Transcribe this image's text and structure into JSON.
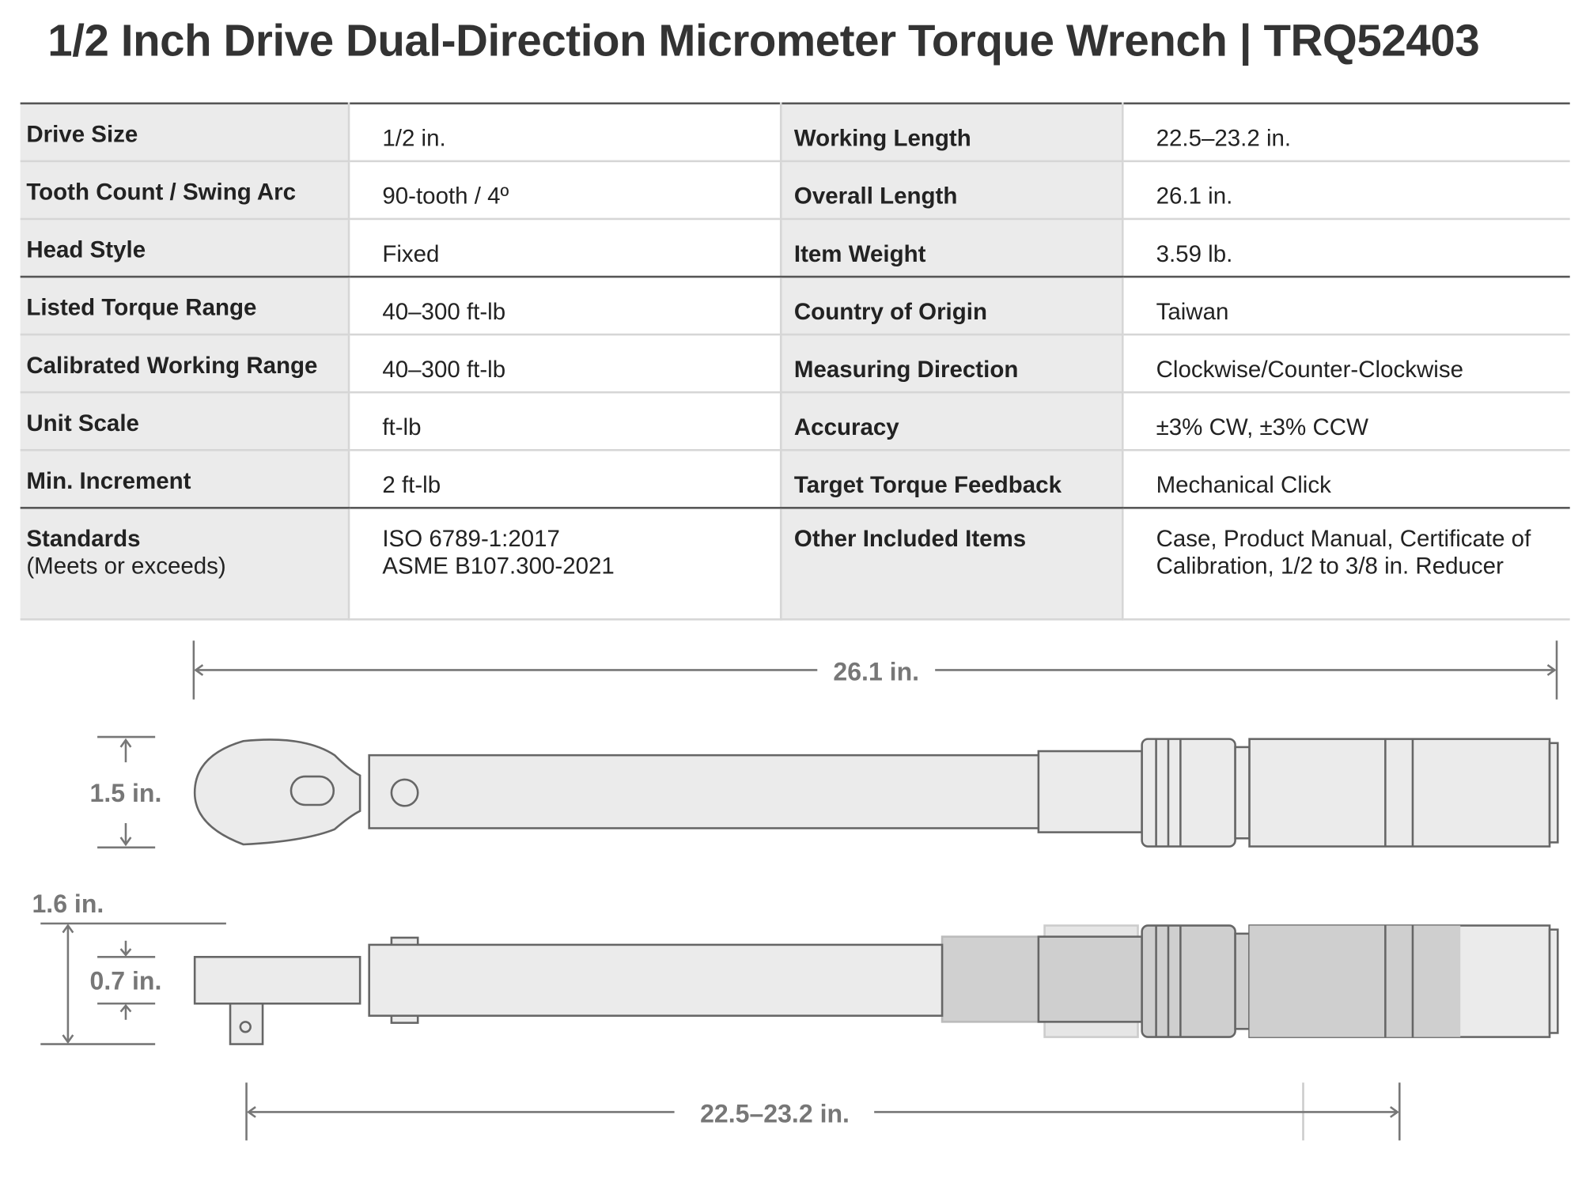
{
  "title": "1/2 Inch Drive Dual-Direction Micrometer Torque Wrench | TRQ52403",
  "specs": [
    {
      "label": "Drive Size",
      "value": "1/2 in.",
      "label2": "Working Length",
      "value2": "22.5–23.2 in."
    },
    {
      "label": "Tooth Count / Swing Arc",
      "value": "90-tooth / 4º",
      "label2": "Overall Length",
      "value2": "26.1 in."
    },
    {
      "label": "Head Style",
      "value": "Fixed",
      "label2": "Item Weight",
      "value2": "3.59 lb."
    },
    {
      "label": "Listed Torque Range",
      "value": "40–300 ft-lb",
      "label2": "Country of Origin",
      "value2": "Taiwan"
    },
    {
      "label": "Calibrated Working Range",
      "value": "40–300 ft-lb",
      "label2": "Measuring Direction",
      "value2": "Clockwise/Counter-Clockwise"
    },
    {
      "label": "Unit Scale",
      "value": "ft-lb",
      "label2": "Accuracy",
      "value2": "±3% CW,  ±3% CCW"
    },
    {
      "label": "Min. Increment",
      "value": "2 ft-lb",
      "label2": "Target Torque Feedback",
      "value2": "Mechanical Click"
    },
    {
      "label": "Standards",
      "label_sub": "(Meets or exceeds)",
      "value": "ISO 6789-1:2017",
      "value_line2": "ASME B107.300-2021",
      "label2": "Other Included Items",
      "value2": "Case, Product Manual, Certificate of Calibration, 1/2 to 3/8 in. Reducer"
    }
  ],
  "dimensions": {
    "overall_length": "26.1 in.",
    "head_width": "1.5 in.",
    "total_height": "1.6 in.",
    "head_thickness": "0.7 in.",
    "working_length": "22.5–23.2 in."
  }
}
